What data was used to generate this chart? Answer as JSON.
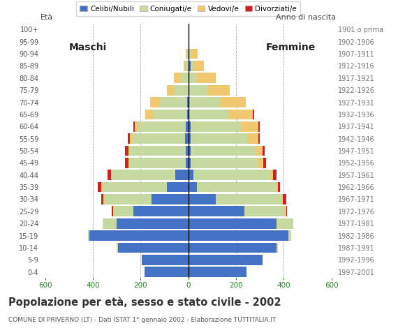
{
  "age_groups": [
    "0-4",
    "5-9",
    "10-14",
    "15-19",
    "20-24",
    "25-29",
    "30-34",
    "35-39",
    "40-44",
    "45-49",
    "50-54",
    "55-59",
    "60-64",
    "65-69",
    "70-74",
    "75-79",
    "80-84",
    "85-89",
    "90-94",
    "95-99",
    "100+"
  ],
  "birth_years": [
    "1997-2001",
    "1992-1996",
    "1987-1991",
    "1982-1986",
    "1977-1981",
    "1972-1976",
    "1967-1971",
    "1962-1966",
    "1957-1961",
    "1952-1956",
    "1947-1951",
    "1942-1946",
    "1937-1941",
    "1932-1936",
    "1927-1931",
    "1922-1926",
    "1917-1921",
    "1912-1916",
    "1907-1911",
    "1902-1906",
    "1901 o prima"
  ],
  "males": {
    "celibi": [
      185,
      195,
      295,
      415,
      300,
      230,
      155,
      90,
      55,
      10,
      10,
      15,
      10,
      5,
      5,
      0,
      0,
      0,
      0,
      0,
      0
    ],
    "coniugati": [
      0,
      0,
      5,
      5,
      60,
      80,
      195,
      270,
      265,
      235,
      235,
      220,
      200,
      140,
      115,
      60,
      30,
      10,
      5,
      0,
      0
    ],
    "vedovi": [
      0,
      0,
      0,
      0,
      0,
      5,
      5,
      5,
      5,
      5,
      5,
      10,
      15,
      35,
      40,
      30,
      30,
      10,
      5,
      0,
      0
    ],
    "divorziati": [
      0,
      0,
      0,
      0,
      0,
      5,
      10,
      15,
      15,
      15,
      15,
      10,
      5,
      0,
      0,
      0,
      0,
      0,
      0,
      0,
      0
    ]
  },
  "females": {
    "nubili": [
      245,
      310,
      370,
      420,
      370,
      235,
      115,
      35,
      20,
      10,
      10,
      10,
      10,
      5,
      5,
      5,
      5,
      10,
      5,
      0,
      0
    ],
    "coniugate": [
      0,
      0,
      5,
      10,
      70,
      170,
      275,
      335,
      325,
      285,
      270,
      240,
      210,
      165,
      130,
      75,
      30,
      10,
      5,
      0,
      0
    ],
    "vedove": [
      0,
      0,
      0,
      0,
      0,
      5,
      5,
      5,
      10,
      20,
      30,
      45,
      75,
      100,
      105,
      95,
      80,
      45,
      30,
      5,
      0
    ],
    "divorziate": [
      0,
      0,
      0,
      0,
      0,
      5,
      15,
      10,
      15,
      10,
      10,
      5,
      5,
      5,
      0,
      0,
      0,
      0,
      0,
      0,
      0
    ]
  },
  "colors": {
    "celibi_nubili": "#4472c4",
    "coniugati": "#c5d9a0",
    "vedovi": "#f0c870",
    "divorziati": "#cc2222"
  },
  "xlim": 620,
  "title": "Popolazione per età, sesso e stato civile - 2002",
  "subtitle": "COMUNE DI PRIVERNO (LT) - Dati ISTAT 1° gennaio 2002 - Elaborazione TUTTITALIA.IT",
  "ylabel_left": "Età",
  "ylabel_right": "Anno di nascita",
  "label_maschi": "Maschi",
  "label_femmine": "Femmine",
  "legend": [
    "Celibi/Nubili",
    "Coniugati/e",
    "Vedovi/e",
    "Divorziati/e"
  ],
  "xticks": [
    600,
    400,
    200,
    0,
    200,
    400,
    600
  ],
  "grid_lines": [
    -400,
    -200,
    200,
    400
  ]
}
